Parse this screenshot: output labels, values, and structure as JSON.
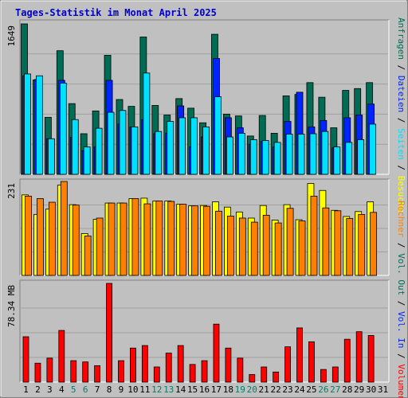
{
  "title": "Tages-Statistik im Monat April 2025",
  "colors": {
    "title": "#0000cc",
    "hits": "#006c54",
    "files": "#0024ff",
    "sites": "#00e0ff",
    "visits": "#ffff00",
    "pages": "#ff8000",
    "kbytes": "#ff0000",
    "weekend_day": "#00806a",
    "weekday": "#000000"
  },
  "right_labels": {
    "top": [
      {
        "text": "Anfragen",
        "color": "#006c54"
      },
      {
        "text": " / ",
        "color": "#000000"
      },
      {
        "text": "Dateien",
        "color": "#0024ff"
      },
      {
        "text": " / ",
        "color": "#000000"
      },
      {
        "text": "Seiten",
        "color": "#00e0ff"
      },
      {
        "text": " / ",
        "color": "#000000"
      },
      {
        "text": "Besuche",
        "color": "#ffff00"
      }
    ],
    "middle": [
      {
        "text": "Rechner",
        "color": "#ff8000"
      },
      {
        "text": " / ",
        "color": "#000000"
      },
      {
        "text": "Vol. Out",
        "color": "#006c54"
      },
      {
        "text": " / ",
        "color": "#000000"
      },
      {
        "text": "Vol. In",
        "color": "#0024ff"
      },
      {
        "text": " / ",
        "color": "#000000"
      },
      {
        "text": "Volumen",
        "color": "#ff0000"
      }
    ]
  },
  "chart_data": [
    {
      "type": "bar",
      "panel": "top",
      "ymax_label": "1649",
      "ymax": 1649,
      "x": [
        1,
        2,
        3,
        4,
        5,
        6,
        7,
        8,
        9,
        10,
        11,
        12,
        13,
        14,
        15,
        16,
        17,
        18,
        19,
        20,
        21,
        22,
        23,
        24,
        25,
        26,
        27,
        28,
        29,
        30
      ],
      "series": [
        {
          "name": "Anfragen",
          "values": [
            1649,
            1035,
            625,
            1355,
            775,
            445,
            695,
            1305,
            820,
            745,
            1505,
            755,
            650,
            830,
            725,
            565,
            1535,
            660,
            640,
            420,
            645,
            450,
            860,
            875,
            1005,
            845,
            510,
            920,
            940,
            1005
          ]
        },
        {
          "name": "Dateien",
          "values": [
            1080,
            1040,
            390,
            1030,
            405,
            260,
            300,
            1030,
            550,
            520,
            600,
            445,
            450,
            750,
            300,
            410,
            1270,
            620,
            510,
            330,
            360,
            300,
            580,
            900,
            520,
            590,
            290,
            620,
            650,
            770
          ]
        },
        {
          "name": "Seiten",
          "values": [
            1100,
            1080,
            390,
            1000,
            600,
            300,
            505,
            680,
            700,
            520,
            1110,
            470,
            580,
            620,
            620,
            520,
            850,
            410,
            450,
            380,
            370,
            350,
            440,
            440,
            445,
            470,
            300,
            350,
            380,
            550
          ]
        }
      ]
    },
    {
      "type": "bar",
      "panel": "middle",
      "ymax_label": "231",
      "ymax": 231,
      "x": [
        1,
        2,
        3,
        4,
        5,
        6,
        7,
        8,
        9,
        10,
        11,
        12,
        13,
        14,
        15,
        16,
        17,
        18,
        19,
        20,
        21,
        22,
        23,
        24,
        25,
        26,
        27,
        28,
        29,
        30
      ],
      "series": [
        {
          "name": "Besuche",
          "values": [
            198,
            150,
            163,
            222,
            174,
            103,
            138,
            178,
            178,
            189,
            190,
            183,
            183,
            175,
            171,
            172,
            181,
            168,
            156,
            141,
            172,
            136,
            174,
            137,
            226,
            209,
            160,
            145,
            157,
            181
          ]
        },
        {
          "name": "Rechner",
          "values": [
            195,
            189,
            180,
            231,
            173,
            97,
            141,
            178,
            178,
            189,
            176,
            183,
            182,
            175,
            171,
            170,
            158,
            146,
            141,
            131,
            148,
            129,
            165,
            134,
            195,
            166,
            159,
            140,
            150,
            155
          ]
        }
      ]
    },
    {
      "type": "bar",
      "panel": "bottom",
      "ymax_label": "78.34 MB",
      "ymax": 78.34,
      "x": [
        1,
        2,
        3,
        4,
        5,
        6,
        7,
        8,
        9,
        10,
        11,
        12,
        13,
        14,
        15,
        16,
        17,
        18,
        19,
        20,
        21,
        22,
        23,
        24,
        25,
        26,
        27,
        28,
        29,
        30
      ],
      "series": [
        {
          "name": "Volumen",
          "values": [
            36,
            15,
            19,
            41,
            17,
            16,
            13,
            78.34,
            17,
            27,
            29,
            12,
            23,
            29,
            14,
            17,
            46,
            27,
            19,
            6,
            12,
            8,
            28,
            43,
            32,
            10,
            12,
            34,
            40,
            37
          ]
        }
      ]
    }
  ],
  "x_labels": [
    "1",
    "2",
    "3",
    "4",
    "5",
    "6",
    "7",
    "8",
    "9",
    "10",
    "11",
    "12",
    "13",
    "14",
    "15",
    "16",
    "17",
    "18",
    "19",
    "20",
    "21",
    "22",
    "23",
    "24",
    "25",
    "26",
    "27",
    "28",
    "29",
    "30",
    "31"
  ],
  "weekend_days": [
    5,
    6,
    12,
    13,
    19,
    20,
    26,
    27
  ]
}
